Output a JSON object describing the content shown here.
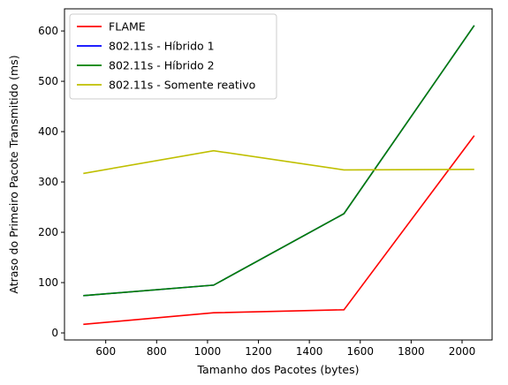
{
  "chart_data": {
    "type": "line",
    "title": "",
    "xlabel": "Tamanho dos Pacotes (bytes)",
    "ylabel": "Atraso do Primeiro Pacote Transmitido (ms)",
    "xlim": [
      438,
      2118
    ],
    "ylim": [
      -14,
      644
    ],
    "xticks": [
      600,
      800,
      1000,
      1200,
      1400,
      1600,
      1800,
      2000
    ],
    "yticks": [
      0,
      100,
      200,
      300,
      400,
      500,
      600
    ],
    "grid": false,
    "legend_position": "upper-left",
    "x": [
      512,
      1024,
      1536,
      2048
    ],
    "series": [
      {
        "name": "FLAME",
        "color": "#ff0000",
        "values": [
          17,
          40,
          46,
          392
        ]
      },
      {
        "name": "802.11s - Híbrido 1",
        "color": "#0000ff",
        "values": [
          74,
          95,
          237,
          611
        ]
      },
      {
        "name": "802.11s - Híbrido 2",
        "color": "#008000",
        "values": [
          74,
          95,
          237,
          611
        ]
      },
      {
        "name": "802.11s - Somente reativo",
        "color": "#bfbf00",
        "values": [
          317,
          362,
          324,
          325
        ]
      }
    ]
  }
}
